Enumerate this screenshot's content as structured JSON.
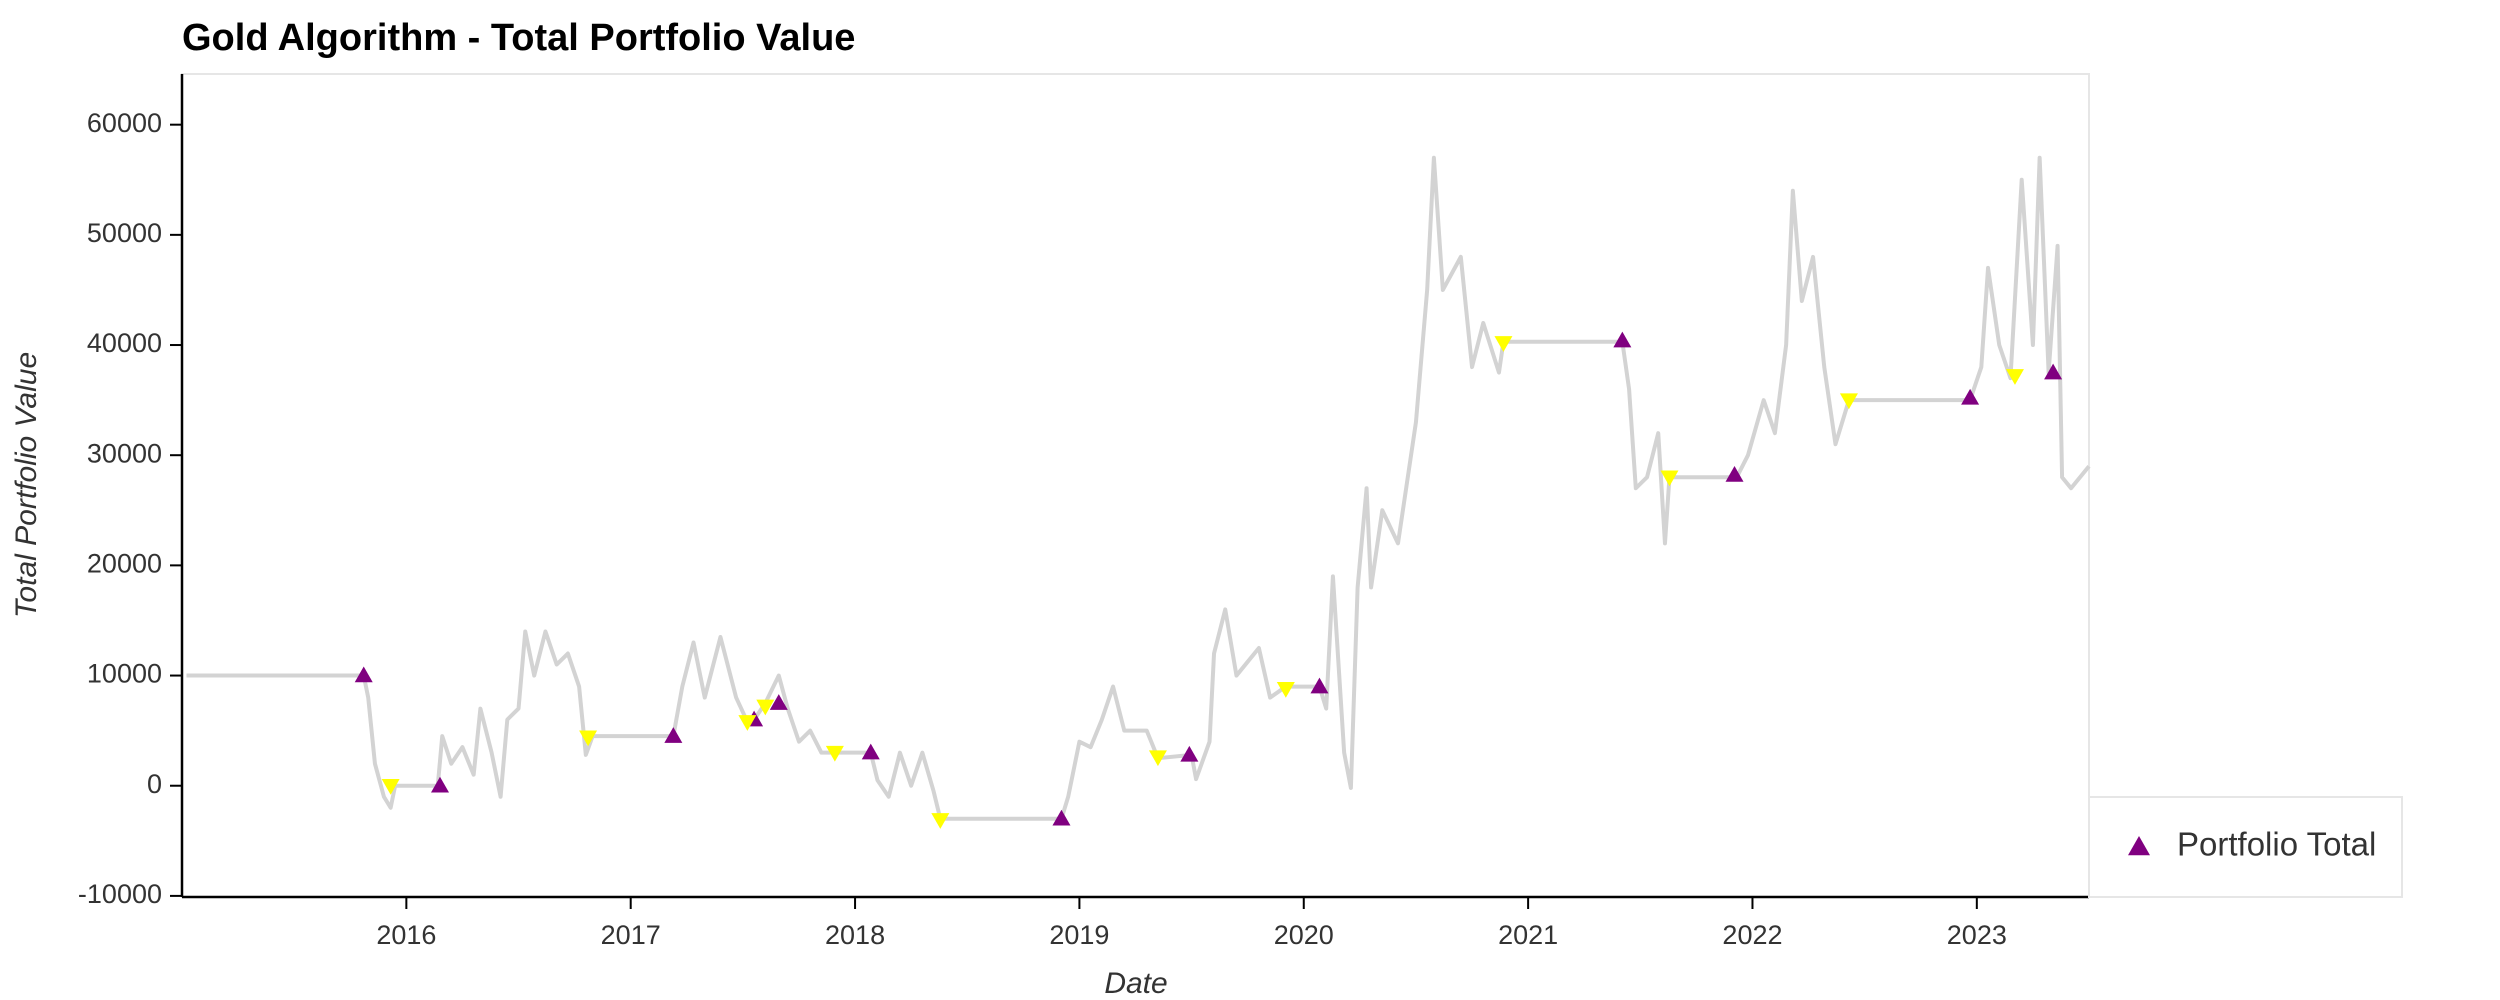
{
  "chart_data": {
    "type": "line",
    "title": "Gold Algorithm - Total Portfolio Value",
    "xlabel": "Date",
    "ylabel": "Total Portfolio Value",
    "xlim": [
      2015.0,
      2023.5
    ],
    "xticks": [
      2016,
      2017,
      2018,
      2019,
      2020,
      2021,
      2022,
      2023
    ],
    "ylim": [
      -10100,
      64600
    ],
    "yticks": [
      -10000,
      0,
      10000,
      20000,
      30000,
      40000,
      50000,
      60000
    ],
    "legend": "lower right",
    "series": [
      {
        "color": "#d3d3d3",
        "kind": "line",
        "x": [
          2015.02,
          2015.81,
          2015.83,
          2015.86,
          2015.9,
          2015.93,
          2015.95,
          2016.14,
          2016.16,
          2016.2,
          2016.25,
          2016.3,
          2016.33,
          2016.38,
          2016.42,
          2016.45,
          2016.5,
          2016.53,
          2016.57,
          2016.62,
          2016.67,
          2016.72,
          2016.77,
          2016.8,
          2016.83,
          2017.19,
          2017.23,
          2017.28,
          2017.33,
          2017.4,
          2017.47,
          2017.52,
          2017.55,
          2017.6,
          2017.66,
          2017.7,
          2017.75,
          2017.8,
          2017.85,
          2017.9,
          2018.07,
          2018.1,
          2018.15,
          2018.2,
          2018.25,
          2018.3,
          2018.35,
          2018.38,
          2018.92,
          2018.95,
          2019.0,
          2019.05,
          2019.1,
          2019.15,
          2019.2,
          2019.3,
          2019.35,
          2019.5,
          2019.52,
          2019.58,
          2019.6,
          2019.65,
          2019.7,
          2019.8,
          2019.85,
          2019.92,
          2020.07,
          2020.1,
          2020.13,
          2020.18,
          2020.21,
          2020.24,
          2020.28,
          2020.3,
          2020.35,
          2020.42,
          2020.5,
          2020.55,
          2020.58,
          2020.62,
          2020.7,
          2020.75,
          2020.8,
          2020.87,
          2020.89,
          2021.42,
          2021.45,
          2021.48,
          2021.53,
          2021.58,
          2021.61,
          2021.63,
          2021.93,
          2021.98,
          2022.05,
          2022.1,
          2022.15,
          2022.18,
          2022.22,
          2022.27,
          2022.32,
          2022.37,
          2022.43,
          2022.97,
          2023.02,
          2023.05,
          2023.1,
          2023.15,
          2023.2,
          2023.25,
          2023.28,
          2023.32,
          2023.36,
          2023.38,
          2023.42,
          2023.5
        ],
        "values": [
          10000,
          10000,
          8000,
          2000,
          -1000,
          -2000,
          0,
          0,
          4500,
          2000,
          3500,
          1000,
          7000,
          3000,
          -1000,
          6000,
          7000,
          14000,
          10000,
          14000,
          11000,
          12000,
          9000,
          2800,
          4500,
          4500,
          9000,
          13000,
          8000,
          13500,
          8000,
          5800,
          6000,
          7500,
          10000,
          7000,
          4000,
          5000,
          3000,
          3000,
          3000,
          500,
          -1000,
          3000,
          0,
          3000,
          -500,
          -3000,
          -3000,
          -1000,
          4000,
          3500,
          6000,
          9000,
          5000,
          5000,
          2500,
          2800,
          600,
          4000,
          12000,
          16000,
          10000,
          12500,
          8000,
          9000,
          9000,
          7000,
          19000,
          3000,
          -200,
          18000,
          27000,
          18000,
          25000,
          22000,
          33000,
          45000,
          57000,
          45000,
          48000,
          38000,
          42000,
          37500,
          40300,
          40300,
          36000,
          27000,
          28000,
          32000,
          22000,
          28000,
          28000,
          30000,
          35000,
          32000,
          40000,
          54000,
          44000,
          48000,
          38000,
          31000,
          35000,
          35000,
          38000,
          47000,
          40000,
          37000,
          55000,
          40000,
          57000,
          37500,
          49000,
          28000,
          27000,
          29000
        ]
      },
      {
        "name": "Portfolio Total",
        "color": "#800080",
        "kind": "buy",
        "x": [
          2015.81,
          2016.15,
          2017.19,
          2017.55,
          2017.66,
          2018.07,
          2018.92,
          2019.49,
          2020.07,
          2021.42,
          2021.92,
          2022.97,
          2023.34
        ],
        "values": [
          10000,
          0,
          4500,
          6000,
          7500,
          3000,
          -3000,
          2800,
          9000,
          40400,
          28200,
          35200,
          37500
        ]
      },
      {
        "color": "#ffff00",
        "kind": "sell",
        "x": [
          2015.93,
          2016.81,
          2017.52,
          2017.6,
          2017.91,
          2018.38,
          2019.35,
          2019.92,
          2020.89,
          2021.63,
          2022.43,
          2023.17
        ],
        "values": [
          0,
          4400,
          5800,
          7200,
          3000,
          -3100,
          2600,
          8800,
          40200,
          28000,
          35000,
          37200
        ]
      }
    ]
  }
}
